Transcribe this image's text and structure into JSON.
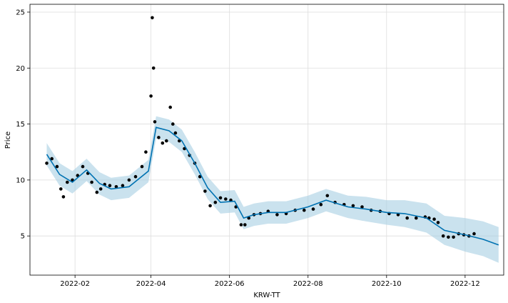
{
  "chart_data": {
    "type": "scatter",
    "title": "",
    "xlabel": "KRW-TT",
    "ylabel": "Price",
    "x_tick_labels": [
      "2022-02",
      "2022-04",
      "2022-06",
      "2022-08",
      "2022-10",
      "2022-12"
    ],
    "y_ticks": [
      5,
      10,
      15,
      20,
      25
    ],
    "xlim": [
      "2021-12-28",
      "2022-12-31"
    ],
    "ylim": [
      1.5,
      25.7
    ],
    "grid": true,
    "colors": {
      "observed": "#000000",
      "forecast": "#0072B2",
      "uncertainty": "#a6cee3"
    },
    "series": [
      {
        "role": "observed",
        "style": "points",
        "x": [
          "2022-01-10",
          "2022-01-14",
          "2022-01-18",
          "2022-01-21",
          "2022-01-23",
          "2022-01-26",
          "2022-01-30",
          "2022-02-03",
          "2022-02-07",
          "2022-02-11",
          "2022-02-14",
          "2022-02-18",
          "2022-02-21",
          "2022-02-24",
          "2022-02-28",
          "2022-03-05",
          "2022-03-10",
          "2022-03-15",
          "2022-03-20",
          "2022-03-25",
          "2022-03-28",
          "2022-04-01",
          "2022-04-02",
          "2022-04-03",
          "2022-04-04",
          "2022-04-07",
          "2022-04-10",
          "2022-04-13",
          "2022-04-16",
          "2022-04-18",
          "2022-04-20",
          "2022-04-23",
          "2022-04-27",
          "2022-05-01",
          "2022-05-05",
          "2022-05-09",
          "2022-05-13",
          "2022-05-17",
          "2022-05-21",
          "2022-05-25",
          "2022-05-29",
          "2022-06-02",
          "2022-06-06",
          "2022-06-10",
          "2022-06-13",
          "2022-06-16",
          "2022-06-20",
          "2022-06-25",
          "2022-07-01",
          "2022-07-08",
          "2022-07-15",
          "2022-07-22",
          "2022-07-29",
          "2022-08-05",
          "2022-08-11",
          "2022-08-16",
          "2022-08-22",
          "2022-08-29",
          "2022-09-05",
          "2022-09-12",
          "2022-09-19",
          "2022-09-26",
          "2022-10-03",
          "2022-10-10",
          "2022-10-17",
          "2022-10-24",
          "2022-10-31",
          "2022-11-03",
          "2022-11-07",
          "2022-11-10",
          "2022-11-14",
          "2022-11-18",
          "2022-11-22",
          "2022-11-26",
          "2022-11-30",
          "2022-12-04",
          "2022-12-08"
        ],
        "y": [
          11.5,
          11.9,
          11.2,
          9.2,
          8.5,
          9.8,
          10.0,
          10.4,
          11.2,
          10.6,
          9.8,
          8.9,
          9.2,
          9.6,
          9.5,
          9.4,
          9.5,
          10.0,
          10.3,
          11.2,
          12.5,
          17.5,
          24.5,
          20.0,
          15.2,
          13.8,
          13.3,
          13.5,
          16.5,
          15.0,
          14.2,
          13.5,
          12.8,
          12.2,
          11.5,
          10.3,
          9.0,
          7.7,
          8.0,
          8.4,
          8.3,
          8.2,
          7.6,
          6.0,
          6.0,
          6.6,
          6.9,
          7.0,
          7.2,
          6.9,
          7.0,
          7.3,
          7.3,
          7.4,
          7.8,
          8.6,
          8.0,
          7.8,
          7.7,
          7.6,
          7.3,
          7.2,
          7.0,
          6.9,
          6.6,
          6.6,
          6.7,
          6.6,
          6.5,
          6.2,
          5.0,
          4.9,
          4.9,
          5.2,
          5.1,
          5.0,
          5.2
        ]
      },
      {
        "role": "forecast",
        "style": "line",
        "x": [
          "2022-01-10",
          "2022-01-20",
          "2022-01-30",
          "2022-02-10",
          "2022-02-20",
          "2022-03-01",
          "2022-03-15",
          "2022-03-30",
          "2022-04-05",
          "2022-04-15",
          "2022-04-25",
          "2022-05-05",
          "2022-05-15",
          "2022-05-25",
          "2022-06-05",
          "2022-06-12",
          "2022-06-20",
          "2022-07-01",
          "2022-07-15",
          "2022-08-01",
          "2022-08-15",
          "2022-09-01",
          "2022-09-15",
          "2022-10-01",
          "2022-10-15",
          "2022-11-01",
          "2022-11-15",
          "2022-12-01",
          "2022-12-15",
          "2022-12-27"
        ],
        "y": [
          12.3,
          10.5,
          9.8,
          10.9,
          9.7,
          9.2,
          9.4,
          10.8,
          14.7,
          14.4,
          13.5,
          11.5,
          9.3,
          8.0,
          8.1,
          6.6,
          6.9,
          7.1,
          7.1,
          7.6,
          8.2,
          7.6,
          7.4,
          7.1,
          7.0,
          6.6,
          5.5,
          5.1,
          4.7,
          4.2
        ],
        "lower": [
          11.3,
          9.5,
          8.8,
          9.9,
          8.7,
          8.2,
          8.4,
          9.8,
          13.7,
          13.4,
          12.5,
          10.5,
          8.3,
          7.0,
          7.1,
          5.6,
          5.9,
          6.1,
          6.1,
          6.6,
          7.2,
          6.6,
          6.3,
          6.0,
          5.8,
          5.3,
          4.2,
          3.6,
          3.2,
          2.6
        ],
        "upper": [
          13.3,
          11.5,
          10.8,
          11.9,
          10.7,
          10.2,
          10.4,
          11.8,
          15.7,
          15.4,
          14.5,
          12.5,
          10.3,
          9.0,
          9.1,
          7.6,
          7.9,
          8.1,
          8.1,
          8.6,
          9.2,
          8.6,
          8.5,
          8.2,
          8.2,
          7.9,
          6.8,
          6.6,
          6.3,
          5.8
        ]
      }
    ]
  }
}
